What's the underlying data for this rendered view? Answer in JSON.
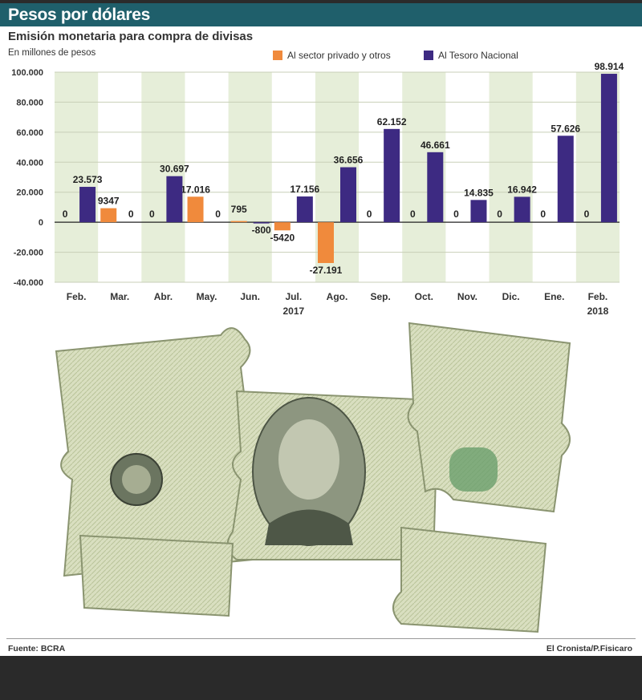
{
  "header": {
    "title": "Pesos por dólares"
  },
  "chart_data": {
    "type": "bar",
    "title": "Emisión monetaria para compra de divisas",
    "units": "En millones de pesos",
    "categories": [
      "Feb.",
      "Mar.",
      "Abr.",
      "May.",
      "Jun.",
      "Jul.",
      "Ago.",
      "Sep.",
      "Oct.",
      "Nov.",
      "Dic.",
      "Ene.",
      "Feb."
    ],
    "year_labels": [
      {
        "text": "2017",
        "category_index": 5
      },
      {
        "text": "2018",
        "category_index": 12
      }
    ],
    "series": [
      {
        "name": "Al sector privado y otros",
        "color": "#f08a3c",
        "values": [
          0,
          9347,
          0,
          17016,
          795,
          -5420,
          -27191,
          0,
          0,
          0,
          0,
          0,
          0
        ],
        "labels": [
          "0",
          "9347",
          "0",
          "17.016",
          "795",
          "-5420",
          "-27.191",
          "0",
          "0",
          "0",
          "0",
          "0",
          "0"
        ]
      },
      {
        "name": "Al Tesoro Nacional",
        "color": "#3d2a82",
        "values": [
          23573,
          0,
          30697,
          0,
          -800,
          17156,
          36656,
          62152,
          46661,
          14835,
          16942,
          57626,
          98914
        ],
        "labels": [
          "23.573",
          "0",
          "30.697",
          "0",
          "-800",
          "17.156",
          "36.656",
          "62.152",
          "46.661",
          "14.835",
          "16.942",
          "57.626",
          "98.914"
        ]
      }
    ],
    "yticks": [
      100000,
      80000,
      60000,
      40000,
      20000,
      0,
      -20000,
      -40000
    ],
    "ytick_labels": [
      "100.000",
      "80.000",
      "60.000",
      "40.000",
      "20.000",
      "0",
      "-20.000",
      "-40.000"
    ],
    "ylim": [
      -40000,
      100000
    ],
    "grid": true,
    "legend_position": "top"
  },
  "footer": {
    "source": "Fuente: BCRA",
    "credit": "El Cronista/P.Fisicaro"
  },
  "illustration": {
    "description_icon": "puzzle-dollar-icon"
  }
}
